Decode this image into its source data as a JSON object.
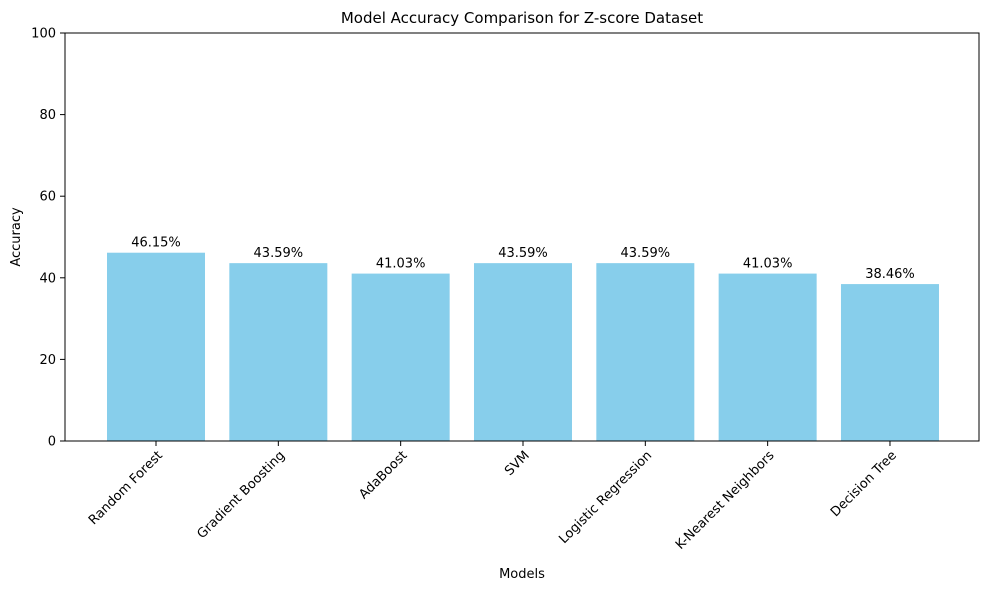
{
  "chart_data": {
    "type": "bar",
    "title": "Model Accuracy Comparison for Z-score Dataset",
    "xlabel": "Models",
    "ylabel": "Accuracy",
    "ylim": [
      0,
      100
    ],
    "yticks": [
      0,
      20,
      40,
      60,
      80,
      100
    ],
    "categories": [
      "Random Forest",
      "Gradient Boosting",
      "AdaBoost",
      "SVM",
      "Logistic Regression",
      "K-Nearest Neighbors",
      "Decision Tree"
    ],
    "values": [
      46.15,
      43.59,
      41.03,
      43.59,
      43.59,
      41.03,
      38.46
    ],
    "data_labels": [
      "46.15%",
      "43.59%",
      "41.03%",
      "43.59%",
      "43.59%",
      "41.03%",
      "38.46%"
    ],
    "bar_color": "#87ceeb",
    "grid": false,
    "x_tick_rotation_deg": 45
  }
}
